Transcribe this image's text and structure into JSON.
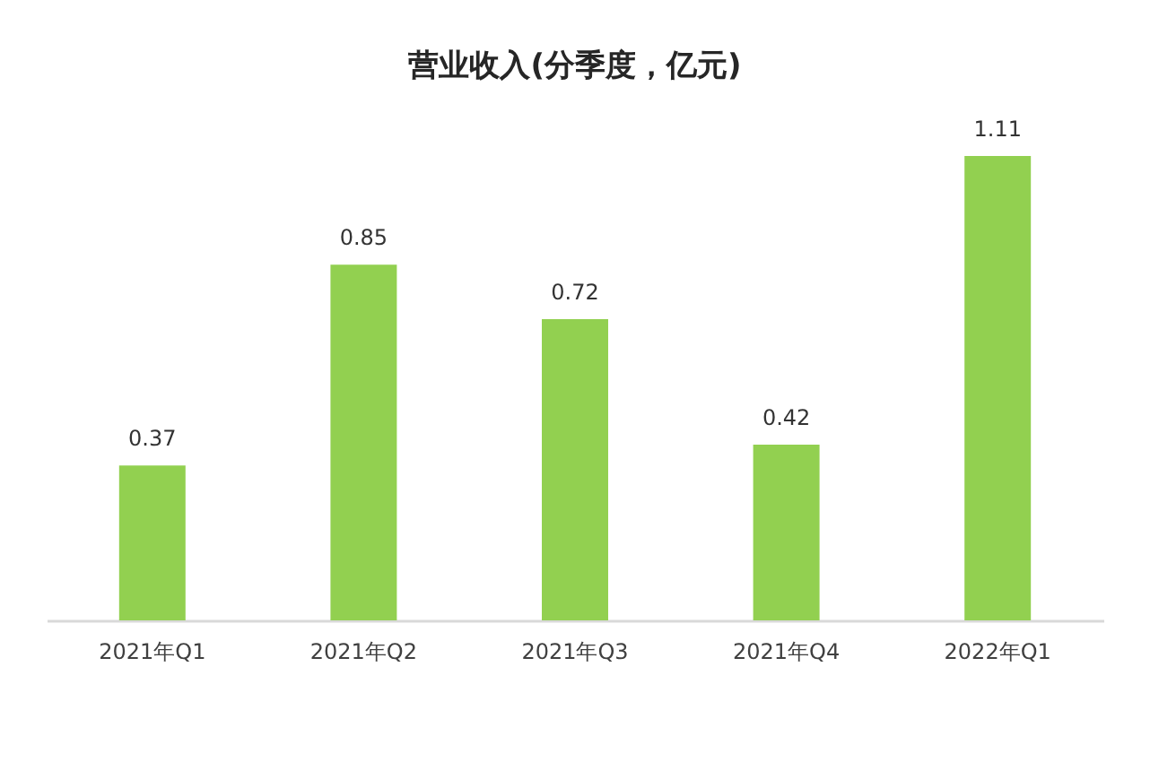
{
  "chart_data": {
    "type": "bar",
    "title": "营业收入(分季度，亿元)",
    "categories": [
      "2021年Q1",
      "2021年Q2",
      "2021年Q3",
      "2021年Q4",
      "2022年Q1"
    ],
    "values": [
      0.37,
      0.85,
      0.72,
      0.42,
      1.11
    ],
    "color": "#92d050",
    "data_labels": true,
    "tick_labels": "x"
  }
}
